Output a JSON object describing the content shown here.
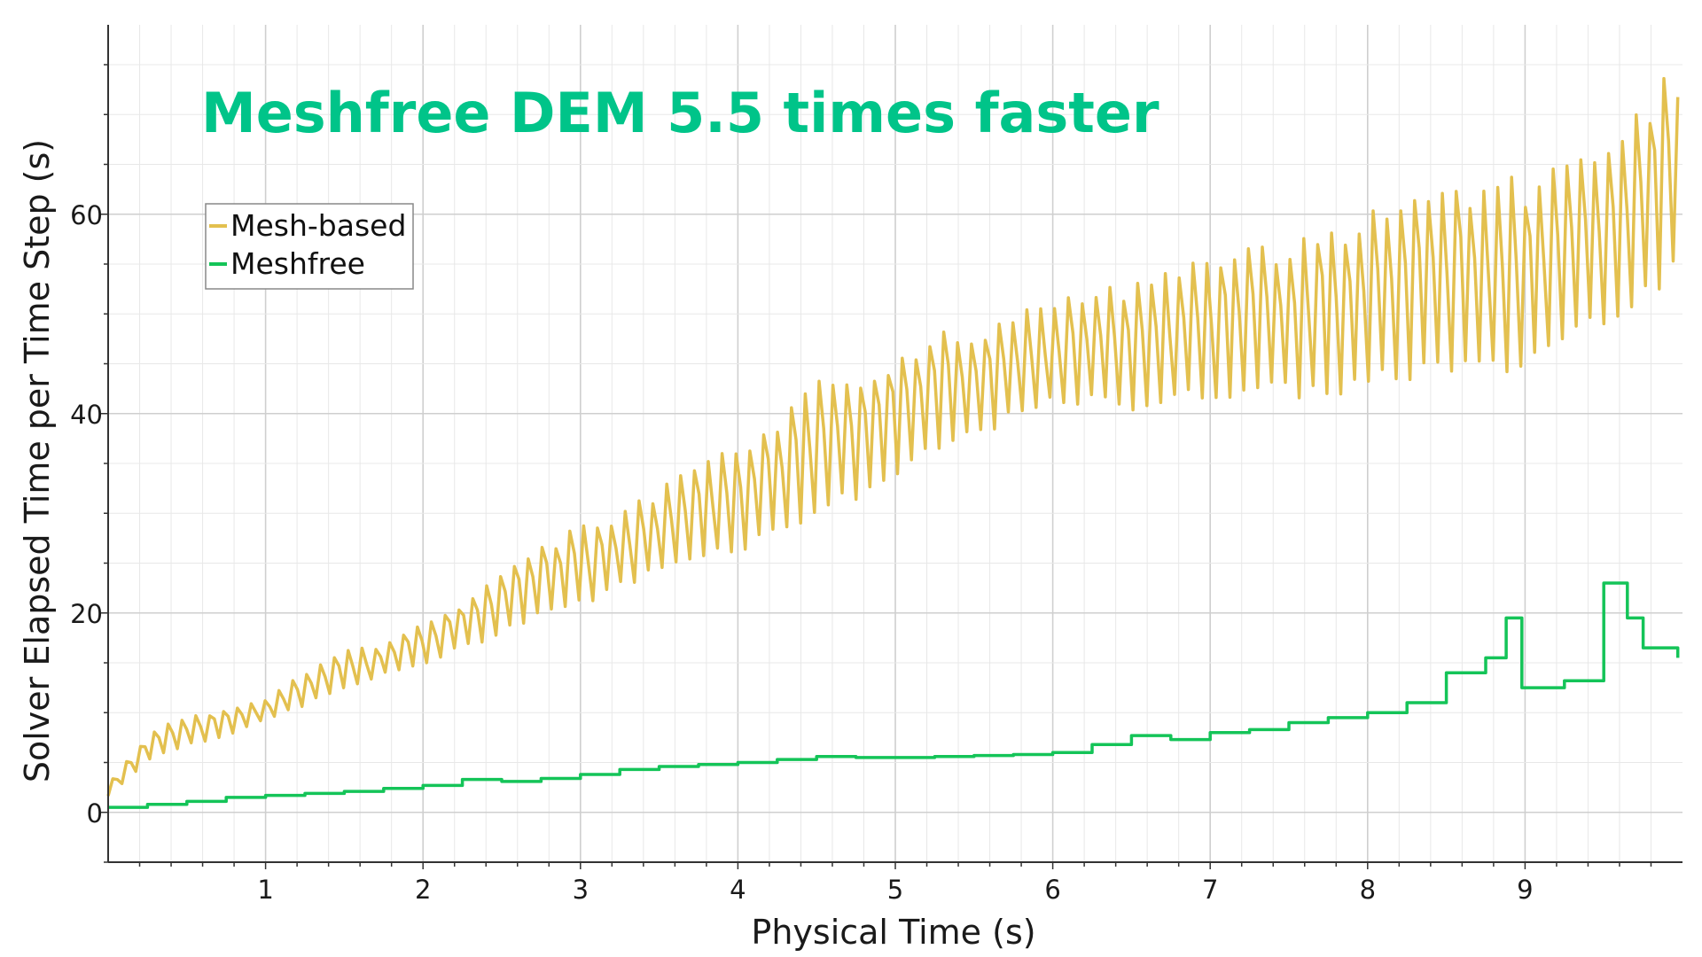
{
  "chart_data": {
    "type": "line",
    "title": "Meshfree DEM 5.5 times faster",
    "xlabel": "Physical Time (s)",
    "ylabel": "Solver Elapsed Time per Time Step (s)",
    "xlim": [
      0,
      10
    ],
    "ylim": [
      -5,
      79
    ],
    "xticks": [
      1,
      2,
      3,
      4,
      5,
      6,
      7,
      8,
      9
    ],
    "xtick_labels": [
      "1",
      "2",
      "3",
      "4",
      "5",
      "6",
      "7",
      "8",
      "9"
    ],
    "yticks": [
      0,
      20,
      40,
      60
    ],
    "ytick_labels": [
      "0",
      "20",
      "40",
      "60"
    ],
    "grid": true,
    "legend_position": "top-left",
    "title_color": "#00c489",
    "series": [
      {
        "name": "Mesh-based",
        "color": "#e3c04f",
        "x": [
          0,
          0.25,
          0.5,
          0.75,
          1,
          1.25,
          1.5,
          1.75,
          2,
          2.25,
          2.5,
          2.75,
          3,
          3.25,
          3.5,
          3.75,
          4,
          4.25,
          4.5,
          4.75,
          5,
          5.25,
          5.5,
          5.75,
          6,
          6.25,
          6.5,
          6.75,
          7,
          7.25,
          7.5,
          7.75,
          8,
          8.25,
          8.5,
          8.75,
          9,
          9.25,
          9.5,
          9.75,
          9.97
        ],
        "y_low": [
          1.5,
          5,
          6.5,
          7.5,
          9,
          10.5,
          12,
          13.5,
          14.5,
          16,
          17.5,
          19.5,
          20,
          22,
          23.5,
          25,
          25.5,
          27,
          29,
          30.5,
          32.5,
          35,
          37,
          38.5,
          40,
          40,
          39.5,
          40,
          40.5,
          41,
          40.5,
          40.5,
          41,
          42,
          43,
          42,
          43,
          46,
          48,
          50,
          52
        ],
        "y_high": [
          3,
          8,
          10,
          10.5,
          11.5,
          14.5,
          16.5,
          17,
          19.5,
          21.5,
          24.5,
          27,
          29.5,
          30.5,
          33,
          35.5,
          37.5,
          40,
          44,
          45,
          47,
          49,
          49,
          51,
          52,
          53.5,
          54,
          55,
          57,
          58,
          58.5,
          60,
          61.5,
          63.5,
          64.5,
          65,
          65,
          66.5,
          68,
          73,
          76
        ]
      },
      {
        "name": "Meshfree",
        "color": "#14c458",
        "x": [
          0,
          0.25,
          0.5,
          0.75,
          1,
          1.25,
          1.5,
          1.75,
          2,
          2.25,
          2.5,
          2.75,
          3,
          3.25,
          3.5,
          3.75,
          4,
          4.25,
          4.5,
          4.75,
          5,
          5.25,
          5.5,
          5.75,
          6,
          6.25,
          6.5,
          6.75,
          7,
          7.25,
          7.5,
          7.75,
          8,
          8.25,
          8.5,
          8.75,
          8.88,
          8.98,
          9.25,
          9.5,
          9.65,
          9.75,
          9.97
        ],
        "y": [
          0.5,
          0.8,
          1.1,
          1.5,
          1.7,
          1.9,
          2.1,
          2.4,
          2.7,
          3.3,
          3.1,
          3.4,
          3.8,
          4.3,
          4.6,
          4.8,
          5.0,
          5.3,
          5.6,
          5.5,
          5.5,
          5.6,
          5.7,
          5.8,
          6.0,
          6.8,
          7.7,
          7.3,
          8.0,
          8.3,
          9.0,
          9.5,
          10.0,
          11.0,
          14.0,
          15.5,
          19.5,
          12.5,
          13.2,
          23.0,
          19.5,
          16.5,
          15.5
        ]
      }
    ]
  }
}
